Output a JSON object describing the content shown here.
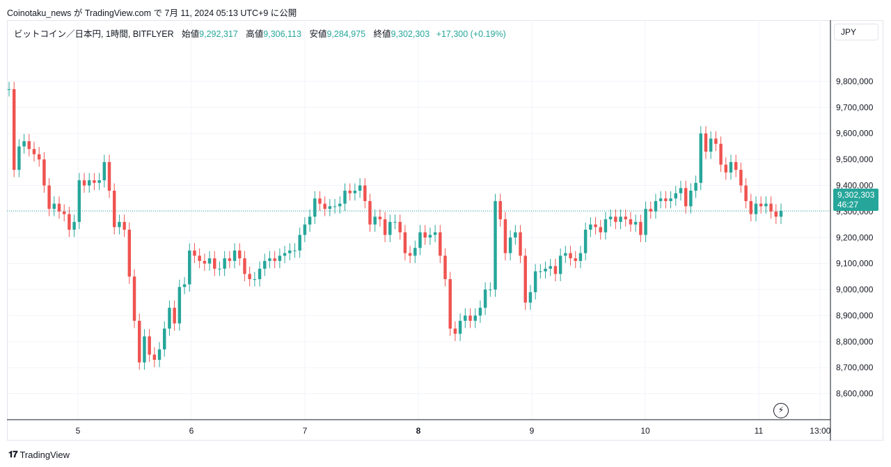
{
  "publish_line": "Coinotaku_news が TradingView.com で 7月 11, 2024 05:13 UTC+9 に公開",
  "legend": {
    "symbol": "ビットコイン／日本円, 1時間, BITFLYER",
    "open_label": "始値",
    "open": "9,292,317",
    "high_label": "高値",
    "high": "9,306,113",
    "low_label": "安値",
    "low": "9,284,975",
    "close_label": "終値",
    "close": "9,302,303",
    "change": "+17,300 (+0.19%)"
  },
  "currency_button": "JPY",
  "last_price": {
    "price": "9,302,303",
    "countdown": "46:27"
  },
  "flash_icon": "lightning-icon",
  "footer": {
    "brand": "TradingView",
    "logo": "tradingview-logo"
  },
  "colors": {
    "up": "#26a69a",
    "down": "#ef5350",
    "grid": "#f0f3fa",
    "text": "#131722"
  },
  "chart_data": {
    "type": "candlestick",
    "y_ticks": [
      9800000,
      9700000,
      9600000,
      9500000,
      9400000,
      9300000,
      9200000,
      9100000,
      9000000,
      8900000,
      8800000,
      8700000,
      8600000
    ],
    "y_tick_labels": [
      "9,800,000",
      "9,700,000",
      "9,600,000",
      "9,500,000",
      "9,400,000",
      "9,300,000",
      "9,200,000",
      "9,100,000",
      "9,000,000",
      "8,900,000",
      "8,800,000",
      "8,700,000",
      "8,600,000"
    ],
    "ylim": [
      8500000,
      9880000
    ],
    "x_ticks": [
      {
        "label": "5",
        "day": 5,
        "bold": false
      },
      {
        "label": "6",
        "day": 6,
        "bold": false
      },
      {
        "label": "7",
        "day": 7,
        "bold": false
      },
      {
        "label": "8",
        "day": 8,
        "bold": true
      },
      {
        "label": "9",
        "day": 9,
        "bold": false
      },
      {
        "label": "10",
        "day": 10,
        "bold": false
      },
      {
        "label": "11",
        "day": 11,
        "bold": false
      },
      {
        "label": "13:00",
        "day": 11.5417,
        "bold": false
      }
    ],
    "xlim_days": [
      4.4,
      11.7
    ],
    "last_close": 9302303,
    "candle_closes": [
      9770000,
      9460000,
      9550000,
      9570000,
      9540000,
      9520000,
      9500000,
      9400000,
      9310000,
      9330000,
      9300000,
      9290000,
      9230000,
      9260000,
      9420000,
      9400000,
      9420000,
      9410000,
      9420000,
      9490000,
      9380000,
      9240000,
      9260000,
      9230000,
      9050000,
      8880000,
      8720000,
      8820000,
      8750000,
      8730000,
      8770000,
      8850000,
      8930000,
      8870000,
      9010000,
      9020000,
      9150000,
      9130000,
      9110000,
      9100000,
      9120000,
      9080000,
      9080000,
      9120000,
      9110000,
      9150000,
      9120000,
      9060000,
      9040000,
      9040000,
      9080000,
      9110000,
      9120000,
      9110000,
      9130000,
      9140000,
      9150000,
      9150000,
      9210000,
      9250000,
      9280000,
      9350000,
      9330000,
      9310000,
      9320000,
      9320000,
      9330000,
      9380000,
      9370000,
      9380000,
      9400000,
      9340000,
      9250000,
      9280000,
      9270000,
      9210000,
      9260000,
      9260000,
      9220000,
      9140000,
      9130000,
      9160000,
      9220000,
      9200000,
      9210000,
      9220000,
      9130000,
      9040000,
      8850000,
      8830000,
      8880000,
      8900000,
      8880000,
      8900000,
      8930000,
      9000000,
      9000000,
      9340000,
      9270000,
      9140000,
      9200000,
      9220000,
      9130000,
      8950000,
      8990000,
      9070000,
      9070000,
      9080000,
      9090000,
      9060000,
      9130000,
      9140000,
      9120000,
      9110000,
      9140000,
      9230000,
      9250000,
      9240000,
      9220000,
      9270000,
      9280000,
      9260000,
      9280000,
      9270000,
      9250000,
      9260000,
      9210000,
      9310000,
      9300000,
      9340000,
      9350000,
      9340000,
      9350000,
      9370000,
      9390000,
      9320000,
      9380000,
      9410000,
      9600000,
      9530000,
      9580000,
      9560000,
      9480000,
      9450000,
      9490000,
      9460000,
      9400000,
      9340000,
      9290000,
      9330000,
      9320000,
      9330000,
      9300000,
      9280000,
      9302303
    ],
    "candle_opens": [
      9770000,
      9770000,
      9460000,
      9550000,
      9570000,
      9540000,
      9520000,
      9500000,
      9400000,
      9310000,
      9330000,
      9300000,
      9290000,
      9230000,
      9260000,
      9420000,
      9400000,
      9420000,
      9410000,
      9420000,
      9490000,
      9380000,
      9240000,
      9260000,
      9230000,
      9050000,
      8880000,
      8720000,
      8820000,
      8750000,
      8730000,
      8770000,
      8850000,
      8930000,
      8870000,
      9010000,
      9020000,
      9150000,
      9130000,
      9110000,
      9100000,
      9120000,
      9080000,
      9080000,
      9120000,
      9110000,
      9150000,
      9120000,
      9060000,
      9040000,
      9040000,
      9080000,
      9110000,
      9120000,
      9110000,
      9130000,
      9140000,
      9150000,
      9150000,
      9210000,
      9250000,
      9280000,
      9350000,
      9330000,
      9310000,
      9320000,
      9320000,
      9330000,
      9380000,
      9370000,
      9380000,
      9400000,
      9340000,
      9250000,
      9280000,
      9270000,
      9210000,
      9260000,
      9260000,
      9220000,
      9140000,
      9130000,
      9160000,
      9220000,
      9200000,
      9210000,
      9220000,
      9130000,
      9040000,
      8850000,
      8830000,
      8880000,
      8900000,
      8880000,
      8900000,
      8930000,
      9000000,
      9000000,
      9340000,
      9270000,
      9140000,
      9200000,
      9220000,
      9130000,
      8950000,
      8990000,
      9070000,
      9070000,
      9080000,
      9090000,
      9060000,
      9130000,
      9140000,
      9120000,
      9110000,
      9140000,
      9230000,
      9250000,
      9240000,
      9220000,
      9270000,
      9280000,
      9260000,
      9280000,
      9270000,
      9250000,
      9260000,
      9210000,
      9310000,
      9300000,
      9340000,
      9350000,
      9340000,
      9350000,
      9370000,
      9390000,
      9320000,
      9380000,
      9410000,
      9600000,
      9530000,
      9580000,
      9560000,
      9480000,
      9450000,
      9490000,
      9460000,
      9400000,
      9340000,
      9290000,
      9330000,
      9320000,
      9330000,
      9300000,
      9280000,
      9292317
    ],
    "open": 9292317,
    "high": 9306113,
    "low": 9284975,
    "close": 9302303
  }
}
